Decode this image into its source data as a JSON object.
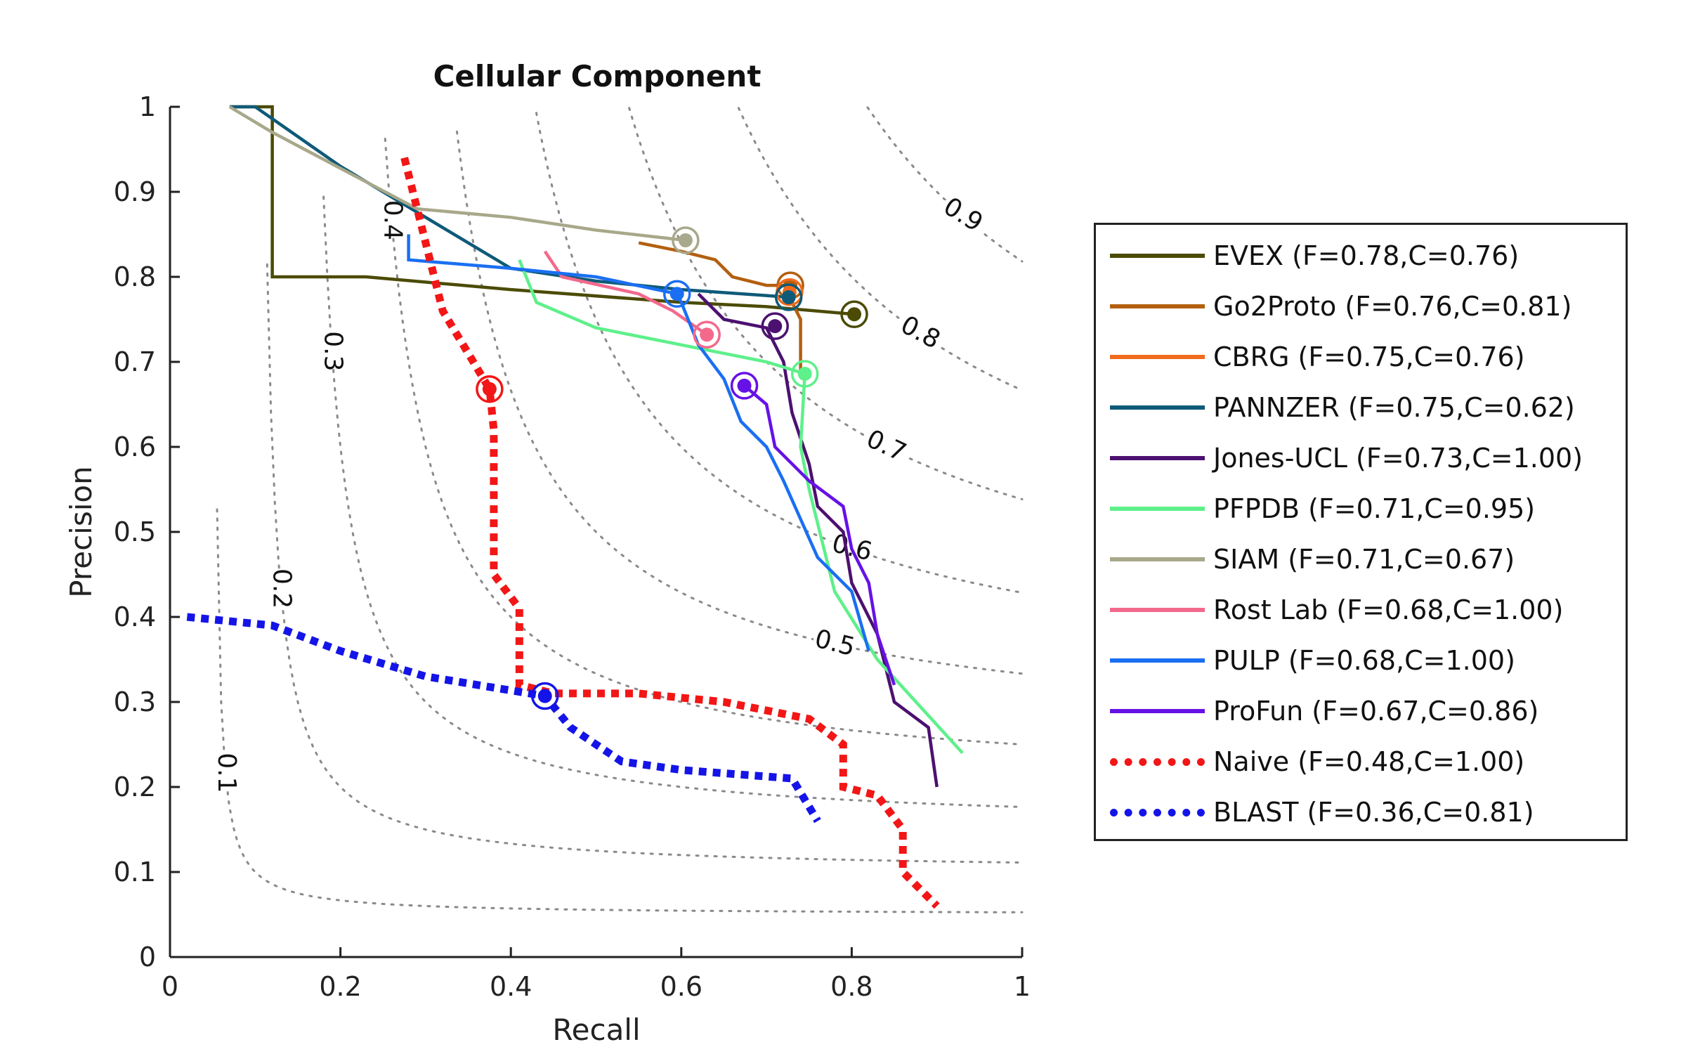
{
  "chart_data": {
    "type": "line",
    "title": "Cellular Component",
    "xlabel": "Recall",
    "ylabel": "Precision",
    "xlim": [
      0,
      1
    ],
    "ylim": [
      0,
      1
    ],
    "xticks": [
      "0",
      "0.2",
      "0.4",
      "0.6",
      "0.8",
      "1"
    ],
    "yticks": [
      "0",
      "0.1",
      "0.2",
      "0.3",
      "0.4",
      "0.5",
      "0.6",
      "0.7",
      "0.8",
      "0.9",
      "1"
    ],
    "legend_position": "right, outside",
    "grid": false,
    "iso_f_curves": [
      {
        "f": 0.1,
        "label": "0.1"
      },
      {
        "f": 0.2,
        "label": "0.2"
      },
      {
        "f": 0.3,
        "label": "0.3"
      },
      {
        "f": 0.4,
        "label": "0.4"
      },
      {
        "f": 0.5,
        "label": "0.5"
      },
      {
        "f": 0.6,
        "label": "0.6"
      },
      {
        "f": 0.7,
        "label": "0.7"
      },
      {
        "f": 0.8,
        "label": "0.8"
      },
      {
        "f": 0.9,
        "label": "0.9"
      }
    ],
    "series": [
      {
        "name": "EVEX (F=0.78,C=0.76)",
        "color": "#4b4b05",
        "style": "solid",
        "points": [
          [
            0.07,
            1.0
          ],
          [
            0.12,
            1.0
          ],
          [
            0.12,
            0.8
          ],
          [
            0.23,
            0.8
          ],
          [
            0.4,
            0.785
          ],
          [
            0.6,
            0.77
          ],
          [
            0.7,
            0.765
          ],
          [
            0.803,
            0.756
          ]
        ],
        "marker": [
          0.803,
          0.756
        ]
      },
      {
        "name": "Go2Proto (F=0.76,C=0.81)",
        "color": "#b35f10",
        "style": "solid",
        "points": [
          [
            0.55,
            0.84
          ],
          [
            0.6,
            0.83
          ],
          [
            0.64,
            0.82
          ],
          [
            0.66,
            0.8
          ],
          [
            0.7,
            0.79
          ],
          [
            0.73,
            0.79
          ],
          [
            0.73,
            0.77
          ],
          [
            0.74,
            0.75
          ],
          [
            0.74,
            0.69
          ]
        ],
        "marker": [
          0.728,
          0.79
        ]
      },
      {
        "name": "CBRG (F=0.75,C=0.76)",
        "color": "#f26a1b",
        "style": "solid",
        "points": [
          [
            0.72,
            0.795
          ],
          [
            0.73,
            0.785
          ],
          [
            0.727,
            0.778
          ]
        ],
        "marker": [
          0.727,
          0.782
        ]
      },
      {
        "name": "PANNZER (F=0.75,C=0.62)",
        "color": "#0e5a78",
        "style": "solid",
        "points": [
          [
            0.07,
            1.0
          ],
          [
            0.1,
            1.0
          ],
          [
            0.2,
            0.93
          ],
          [
            0.3,
            0.87
          ],
          [
            0.4,
            0.81
          ],
          [
            0.5,
            0.795
          ],
          [
            0.6,
            0.785
          ],
          [
            0.7,
            0.778
          ],
          [
            0.726,
            0.776
          ]
        ],
        "marker": [
          0.726,
          0.776
        ]
      },
      {
        "name": "Jones-UCL (F=0.73,C=1.00)",
        "color": "#4c1170",
        "style": "solid",
        "points": [
          [
            0.62,
            0.78
          ],
          [
            0.65,
            0.75
          ],
          [
            0.7,
            0.74
          ],
          [
            0.72,
            0.7
          ],
          [
            0.73,
            0.64
          ],
          [
            0.75,
            0.58
          ],
          [
            0.76,
            0.53
          ],
          [
            0.79,
            0.5
          ],
          [
            0.8,
            0.44
          ],
          [
            0.83,
            0.38
          ],
          [
            0.85,
            0.3
          ],
          [
            0.89,
            0.27
          ],
          [
            0.9,
            0.2
          ]
        ],
        "marker": [
          0.71,
          0.742
        ]
      },
      {
        "name": "PFPDB (F=0.71,C=0.95)",
        "color": "#5ef08a",
        "style": "solid",
        "points": [
          [
            0.41,
            0.82
          ],
          [
            0.43,
            0.77
          ],
          [
            0.5,
            0.74
          ],
          [
            0.6,
            0.72
          ],
          [
            0.7,
            0.7
          ],
          [
            0.745,
            0.686
          ],
          [
            0.74,
            0.6
          ],
          [
            0.75,
            0.55
          ],
          [
            0.78,
            0.43
          ],
          [
            0.83,
            0.35
          ],
          [
            0.93,
            0.24
          ]
        ],
        "marker": [
          0.745,
          0.686
        ]
      },
      {
        "name": "SIAM (F=0.71,C=0.67)",
        "color": "#a8a88a",
        "style": "solid",
        "points": [
          [
            0.07,
            1.0
          ],
          [
            0.12,
            0.97
          ],
          [
            0.29,
            0.88
          ],
          [
            0.4,
            0.87
          ],
          [
            0.5,
            0.855
          ],
          [
            0.605,
            0.843
          ]
        ],
        "marker": [
          0.605,
          0.843
        ]
      },
      {
        "name": "Rost Lab (F=0.68,C=1.00)",
        "color": "#f3698c",
        "style": "solid",
        "points": [
          [
            0.44,
            0.83
          ],
          [
            0.46,
            0.8
          ],
          [
            0.55,
            0.78
          ],
          [
            0.59,
            0.76
          ],
          [
            0.63,
            0.732
          ]
        ],
        "marker": [
          0.63,
          0.732
        ]
      },
      {
        "name": "PULP (F=0.68,C=1.00)",
        "color": "#1a6ff2",
        "style": "solid",
        "points": [
          [
            0.28,
            0.85
          ],
          [
            0.28,
            0.82
          ],
          [
            0.4,
            0.81
          ],
          [
            0.5,
            0.8
          ],
          [
            0.595,
            0.78
          ],
          [
            0.6,
            0.77
          ],
          [
            0.62,
            0.72
          ],
          [
            0.65,
            0.68
          ],
          [
            0.67,
            0.63
          ],
          [
            0.7,
            0.6
          ],
          [
            0.72,
            0.56
          ],
          [
            0.76,
            0.47
          ],
          [
            0.8,
            0.43
          ],
          [
            0.82,
            0.36
          ]
        ],
        "marker": [
          0.595,
          0.78
        ]
      },
      {
        "name": "ProFun (F=0.67,C=0.86)",
        "color": "#6612e6",
        "style": "solid",
        "points": [
          [
            0.674,
            0.672
          ],
          [
            0.7,
            0.65
          ],
          [
            0.71,
            0.6
          ],
          [
            0.75,
            0.56
          ],
          [
            0.79,
            0.53
          ],
          [
            0.8,
            0.48
          ],
          [
            0.82,
            0.44
          ],
          [
            0.83,
            0.38
          ],
          [
            0.85,
            0.32
          ]
        ],
        "marker": [
          0.674,
          0.672
        ]
      },
      {
        "name": "Naive (F=0.48,C=1.00)",
        "color": "#f21616",
        "style": "dotted",
        "points": [
          [
            0.275,
            0.94
          ],
          [
            0.29,
            0.88
          ],
          [
            0.32,
            0.76
          ],
          [
            0.35,
            0.71
          ],
          [
            0.375,
            0.668
          ],
          [
            0.38,
            0.62
          ],
          [
            0.38,
            0.45
          ],
          [
            0.41,
            0.41
          ],
          [
            0.41,
            0.32
          ],
          [
            0.45,
            0.31
          ],
          [
            0.55,
            0.31
          ],
          [
            0.65,
            0.3
          ],
          [
            0.75,
            0.28
          ],
          [
            0.79,
            0.25
          ],
          [
            0.79,
            0.2
          ],
          [
            0.83,
            0.19
          ],
          [
            0.86,
            0.15
          ],
          [
            0.86,
            0.1
          ],
          [
            0.9,
            0.06
          ]
        ],
        "marker": [
          0.375,
          0.668
        ]
      },
      {
        "name": "BLAST (F=0.36,C=0.81)",
        "color": "#1414e8",
        "style": "dotted",
        "points": [
          [
            0.02,
            0.4
          ],
          [
            0.12,
            0.39
          ],
          [
            0.2,
            0.36
          ],
          [
            0.3,
            0.33
          ],
          [
            0.44,
            0.307
          ],
          [
            0.47,
            0.27
          ],
          [
            0.53,
            0.23
          ],
          [
            0.6,
            0.22
          ],
          [
            0.73,
            0.21
          ],
          [
            0.76,
            0.16
          ]
        ],
        "marker": [
          0.44,
          0.307
        ]
      }
    ]
  }
}
